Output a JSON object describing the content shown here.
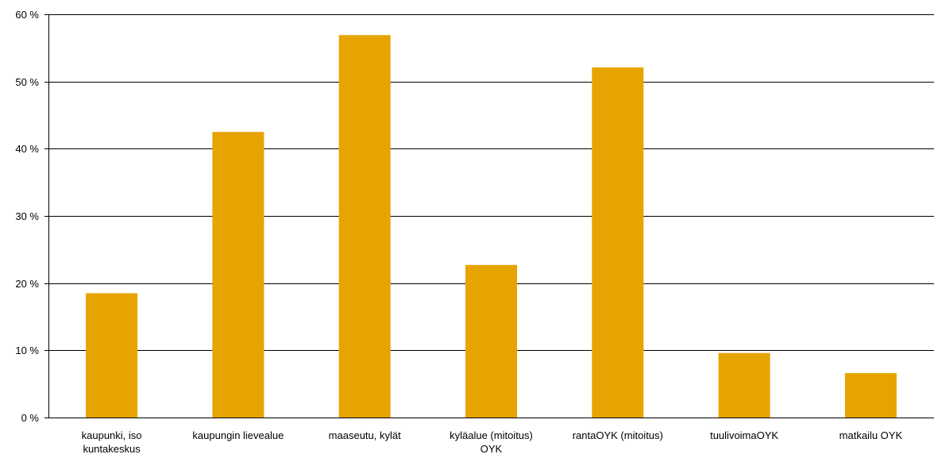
{
  "chart_data": {
    "type": "bar",
    "title": "",
    "xlabel": "",
    "ylabel": "",
    "categories": [
      [
        "kaupunki, iso",
        "kuntakeskus"
      ],
      [
        "kaupungin lievealue"
      ],
      [
        "maaseutu, kylät"
      ],
      [
        "kyläalue (mitoitus)",
        "OYK"
      ],
      [
        "rantaOYK (mitoitus)"
      ],
      [
        "tuulivoimaOYK"
      ],
      [
        "matkailu OYK"
      ]
    ],
    "values": [
      18.5,
      42.5,
      56.9,
      22.7,
      52.1,
      9.6,
      6.6
    ],
    "ylim": [
      0,
      60
    ],
    "yticks": [
      0,
      10,
      20,
      30,
      40,
      50,
      60
    ],
    "ytick_labels": [
      "0 %",
      "10 %",
      "20 %",
      "30 %",
      "40 %",
      "50 %",
      "60 %"
    ],
    "grid": true,
    "legend": "none",
    "colors": {
      "bar": "#E6A400",
      "grid": "#000000",
      "axis": "#000000"
    }
  }
}
